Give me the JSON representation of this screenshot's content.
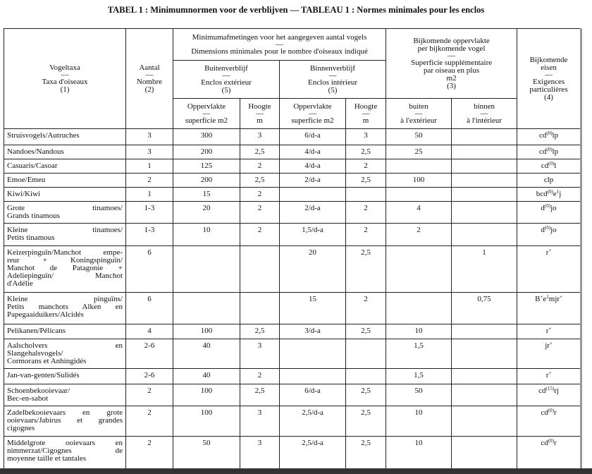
{
  "title": "TABEL 1 : Minimumnormen voor de verblijven — TABLEAU 1 : Normes minimales pour les enclos",
  "headers": {
    "taxa": [
      "Vogeltaxa",
      "—",
      "Taxa d'oiseaux",
      "(1)"
    ],
    "aantal": [
      "Aantal",
      "—",
      "Nombre",
      "(2)"
    ],
    "minimum": [
      "Minimumafmetingen voor het aangegeven aantal vogels",
      "—",
      "Dimensions minimales pour le nombre d'oiseaux indiqué"
    ],
    "buiten": [
      "Buitenverblijf",
      "—",
      "Enclos extérieur",
      "(5)"
    ],
    "binnen": [
      "Binnenverblijf",
      "—",
      "Enclos intérieur",
      "(5)"
    ],
    "bijkomende": [
      "Bijkomende oppervlakte",
      "per bijkomende vogel",
      "—",
      "Superficie supplémentaire",
      "par oiseau en plus",
      "m2",
      "(3)"
    ],
    "eisen": [
      "Bijkomende",
      "eisen",
      "—",
      "Exigences",
      "particulières",
      "(4)"
    ],
    "opp1": [
      "Oppervlakte",
      "—",
      "superficie m2"
    ],
    "hoogte1": [
      "Hoogte",
      "—",
      "m"
    ],
    "opp2": [
      "Oppervlakte",
      "—",
      "superficie m2"
    ],
    "hoogte2": [
      "Hoogte",
      "—",
      "m"
    ],
    "buiten_sub": [
      "buiten",
      "—",
      "à l'extérieur"
    ],
    "binnen_sub": [
      "binnen",
      "—",
      "à l'intérieur"
    ]
  },
  "rows": [
    {
      "name": [
        "Struisvogels/Autruches"
      ],
      "aantal": "3",
      "opp_buiten": "300",
      "h_buiten": "3",
      "opp_binnen": "6/d-a",
      "h_binnen": "3",
      "extra_buiten": "50",
      "extra_binnen": "",
      "eisen": [
        [
          "cd",
          ""
        ],
        [
          "(0)",
          "sup"
        ],
        [
          "lp",
          ""
        ]
      ]
    },
    {
      "name": [
        "Nandoes/Nandous"
      ],
      "aantal": "3",
      "opp_buiten": "200",
      "h_buiten": "2,5",
      "opp_binnen": "4/d-a",
      "h_binnen": "2,5",
      "extra_buiten": "25",
      "extra_binnen": "",
      "eisen": [
        [
          "cd",
          ""
        ],
        [
          "(0)",
          "sup"
        ],
        [
          "lp",
          ""
        ]
      ]
    },
    {
      "name": [
        "Casuaris/Casoar"
      ],
      "aantal": "1",
      "opp_buiten": "125",
      "h_buiten": "2",
      "opp_binnen": "4/d-a",
      "h_binnen": "2",
      "extra_buiten": "",
      "extra_binnen": "",
      "eisen": [
        [
          "cd",
          ""
        ],
        [
          "(0)",
          "sup"
        ],
        [
          "l",
          ""
        ]
      ]
    },
    {
      "name": [
        "Emoe/Emeu"
      ],
      "aantal": "2",
      "opp_buiten": "200",
      "h_buiten": "2,5",
      "opp_binnen": "2/d-a",
      "h_binnen": "2,5",
      "extra_buiten": "100",
      "extra_binnen": "",
      "eisen": [
        [
          "clp",
          ""
        ]
      ]
    },
    {
      "name": [
        "Kiwi/Kiwi"
      ],
      "aantal": "1",
      "opp_buiten": "15",
      "h_buiten": "2",
      "opp_binnen": "",
      "h_binnen": "",
      "extra_buiten": "",
      "extra_binnen": "",
      "eisen": [
        [
          "bcd",
          ""
        ],
        [
          "(0)",
          "sup"
        ],
        [
          "e",
          ""
        ],
        [
          "1",
          "sup"
        ],
        [
          "j",
          ""
        ]
      ]
    },
    {
      "name": [
        "Grote tinamoes/",
        "Grands tinamous"
      ],
      "aantal": "1-3",
      "opp_buiten": "20",
      "h_buiten": "2",
      "opp_binnen": "2/d-a",
      "h_binnen": "2",
      "extra_buiten": "4",
      "extra_binnen": "",
      "eisen": [
        [
          "d",
          ""
        ],
        [
          "(0)",
          "sup"
        ],
        [
          "jo",
          ""
        ]
      ]
    },
    {
      "name": [
        "Kleine tinamoes/",
        "Petits tinamous"
      ],
      "aantal": "1-3",
      "opp_buiten": "10",
      "h_buiten": "2",
      "opp_binnen": "1,5/d-a",
      "h_binnen": "2",
      "extra_buiten": "2",
      "extra_binnen": "",
      "eisen": [
        [
          "d",
          ""
        ],
        [
          "(0)",
          "sup"
        ],
        [
          "jo",
          ""
        ]
      ]
    },
    {
      "name": [
        "Keizerpinguïn/Manchot empe-",
        "reur + Koningspinguïn/",
        "Manchot de Patagonie +",
        "Adeliepinguïn/ Manchot",
        "d'Adélie"
      ],
      "aantal": "6",
      "opp_buiten": "",
      "h_buiten": "",
      "opp_binnen": "20",
      "h_binnen": "2,5",
      "extra_buiten": "",
      "extra_binnen": "1",
      "eisen": [
        [
          "r",
          ""
        ],
        [
          "+",
          "sup"
        ]
      ]
    },
    {
      "name": [
        "Kleine pinguïns/",
        "Petits manchots Alken en",
        "Papegaaiduikers/Alcidés"
      ],
      "aantal": "6",
      "opp_buiten": "",
      "h_buiten": "",
      "opp_binnen": "15",
      "h_binnen": "2",
      "extra_buiten": "",
      "extra_binnen": "0,75",
      "eisen": [
        [
          "B",
          ""
        ],
        [
          "+",
          "sup"
        ],
        [
          "e",
          ""
        ],
        [
          "1",
          "sup"
        ],
        [
          "mjr",
          ""
        ],
        [
          "+",
          "sup"
        ]
      ]
    },
    {
      "name": [
        "Pelikanen/Pélicans"
      ],
      "aantal": "4",
      "opp_buiten": "100",
      "h_buiten": "2,5",
      "opp_binnen": "3/d-a",
      "h_binnen": "2,5",
      "extra_buiten": "10",
      "extra_binnen": "",
      "eisen": [
        [
          "r",
          ""
        ],
        [
          "+",
          "sup"
        ]
      ]
    },
    {
      "name": [
        "Aalscholvers en",
        "Slangehalsvogels/",
        "Cormorans et Anhingidés"
      ],
      "aantal": "2-6",
      "opp_buiten": "40",
      "h_buiten": "3",
      "opp_binnen": "",
      "h_binnen": "",
      "extra_buiten": "1,5",
      "extra_binnen": "",
      "eisen": [
        [
          "jr",
          ""
        ],
        [
          "+",
          "sup"
        ]
      ]
    },
    {
      "name": [
        "Jan-van-genten/Sulidés"
      ],
      "aantal": "2-6",
      "opp_buiten": "40",
      "h_buiten": "2",
      "opp_binnen": "",
      "h_binnen": "",
      "extra_buiten": "1,5",
      "extra_binnen": "",
      "eisen": [
        [
          "r",
          ""
        ],
        [
          "+",
          "sup"
        ]
      ]
    },
    {
      "name": [
        "Schoenbekooievaar/",
        "Bec-en-sabot"
      ],
      "aantal": "2",
      "opp_buiten": "100",
      "h_buiten": "2,5",
      "opp_binnen": "6/d-a",
      "h_binnen": "2,5",
      "extra_buiten": "50",
      "extra_binnen": "",
      "eisen": [
        [
          "cd",
          ""
        ],
        [
          "(15)",
          "sup"
        ],
        [
          "rj",
          ""
        ]
      ]
    },
    {
      "name": [
        "Zadelbekooievaars en grote",
        "ooievaars/Jabirus et grandes",
        "cigognes"
      ],
      "aantal": "2",
      "opp_buiten": "100",
      "h_buiten": "3",
      "opp_binnen": "2,5/d-a",
      "h_binnen": "2,5",
      "extra_buiten": "10",
      "extra_binnen": "",
      "eisen": [
        [
          "cd",
          ""
        ],
        [
          "(0)",
          "sup"
        ],
        [
          "r",
          ""
        ]
      ]
    },
    {
      "name": [
        "Middelgrote ooievaars en",
        "nimmerzat/Cigognes de",
        "moyenne taille et tantales"
      ],
      "aantal": "2",
      "opp_buiten": "50",
      "h_buiten": "3",
      "opp_binnen": "2,5/d-a",
      "h_binnen": "2,5",
      "extra_buiten": "10",
      "extra_binnen": "",
      "eisen": [
        [
          "cd",
          ""
        ],
        [
          "(0)",
          "sup"
        ],
        [
          "r",
          ""
        ]
      ]
    }
  ]
}
